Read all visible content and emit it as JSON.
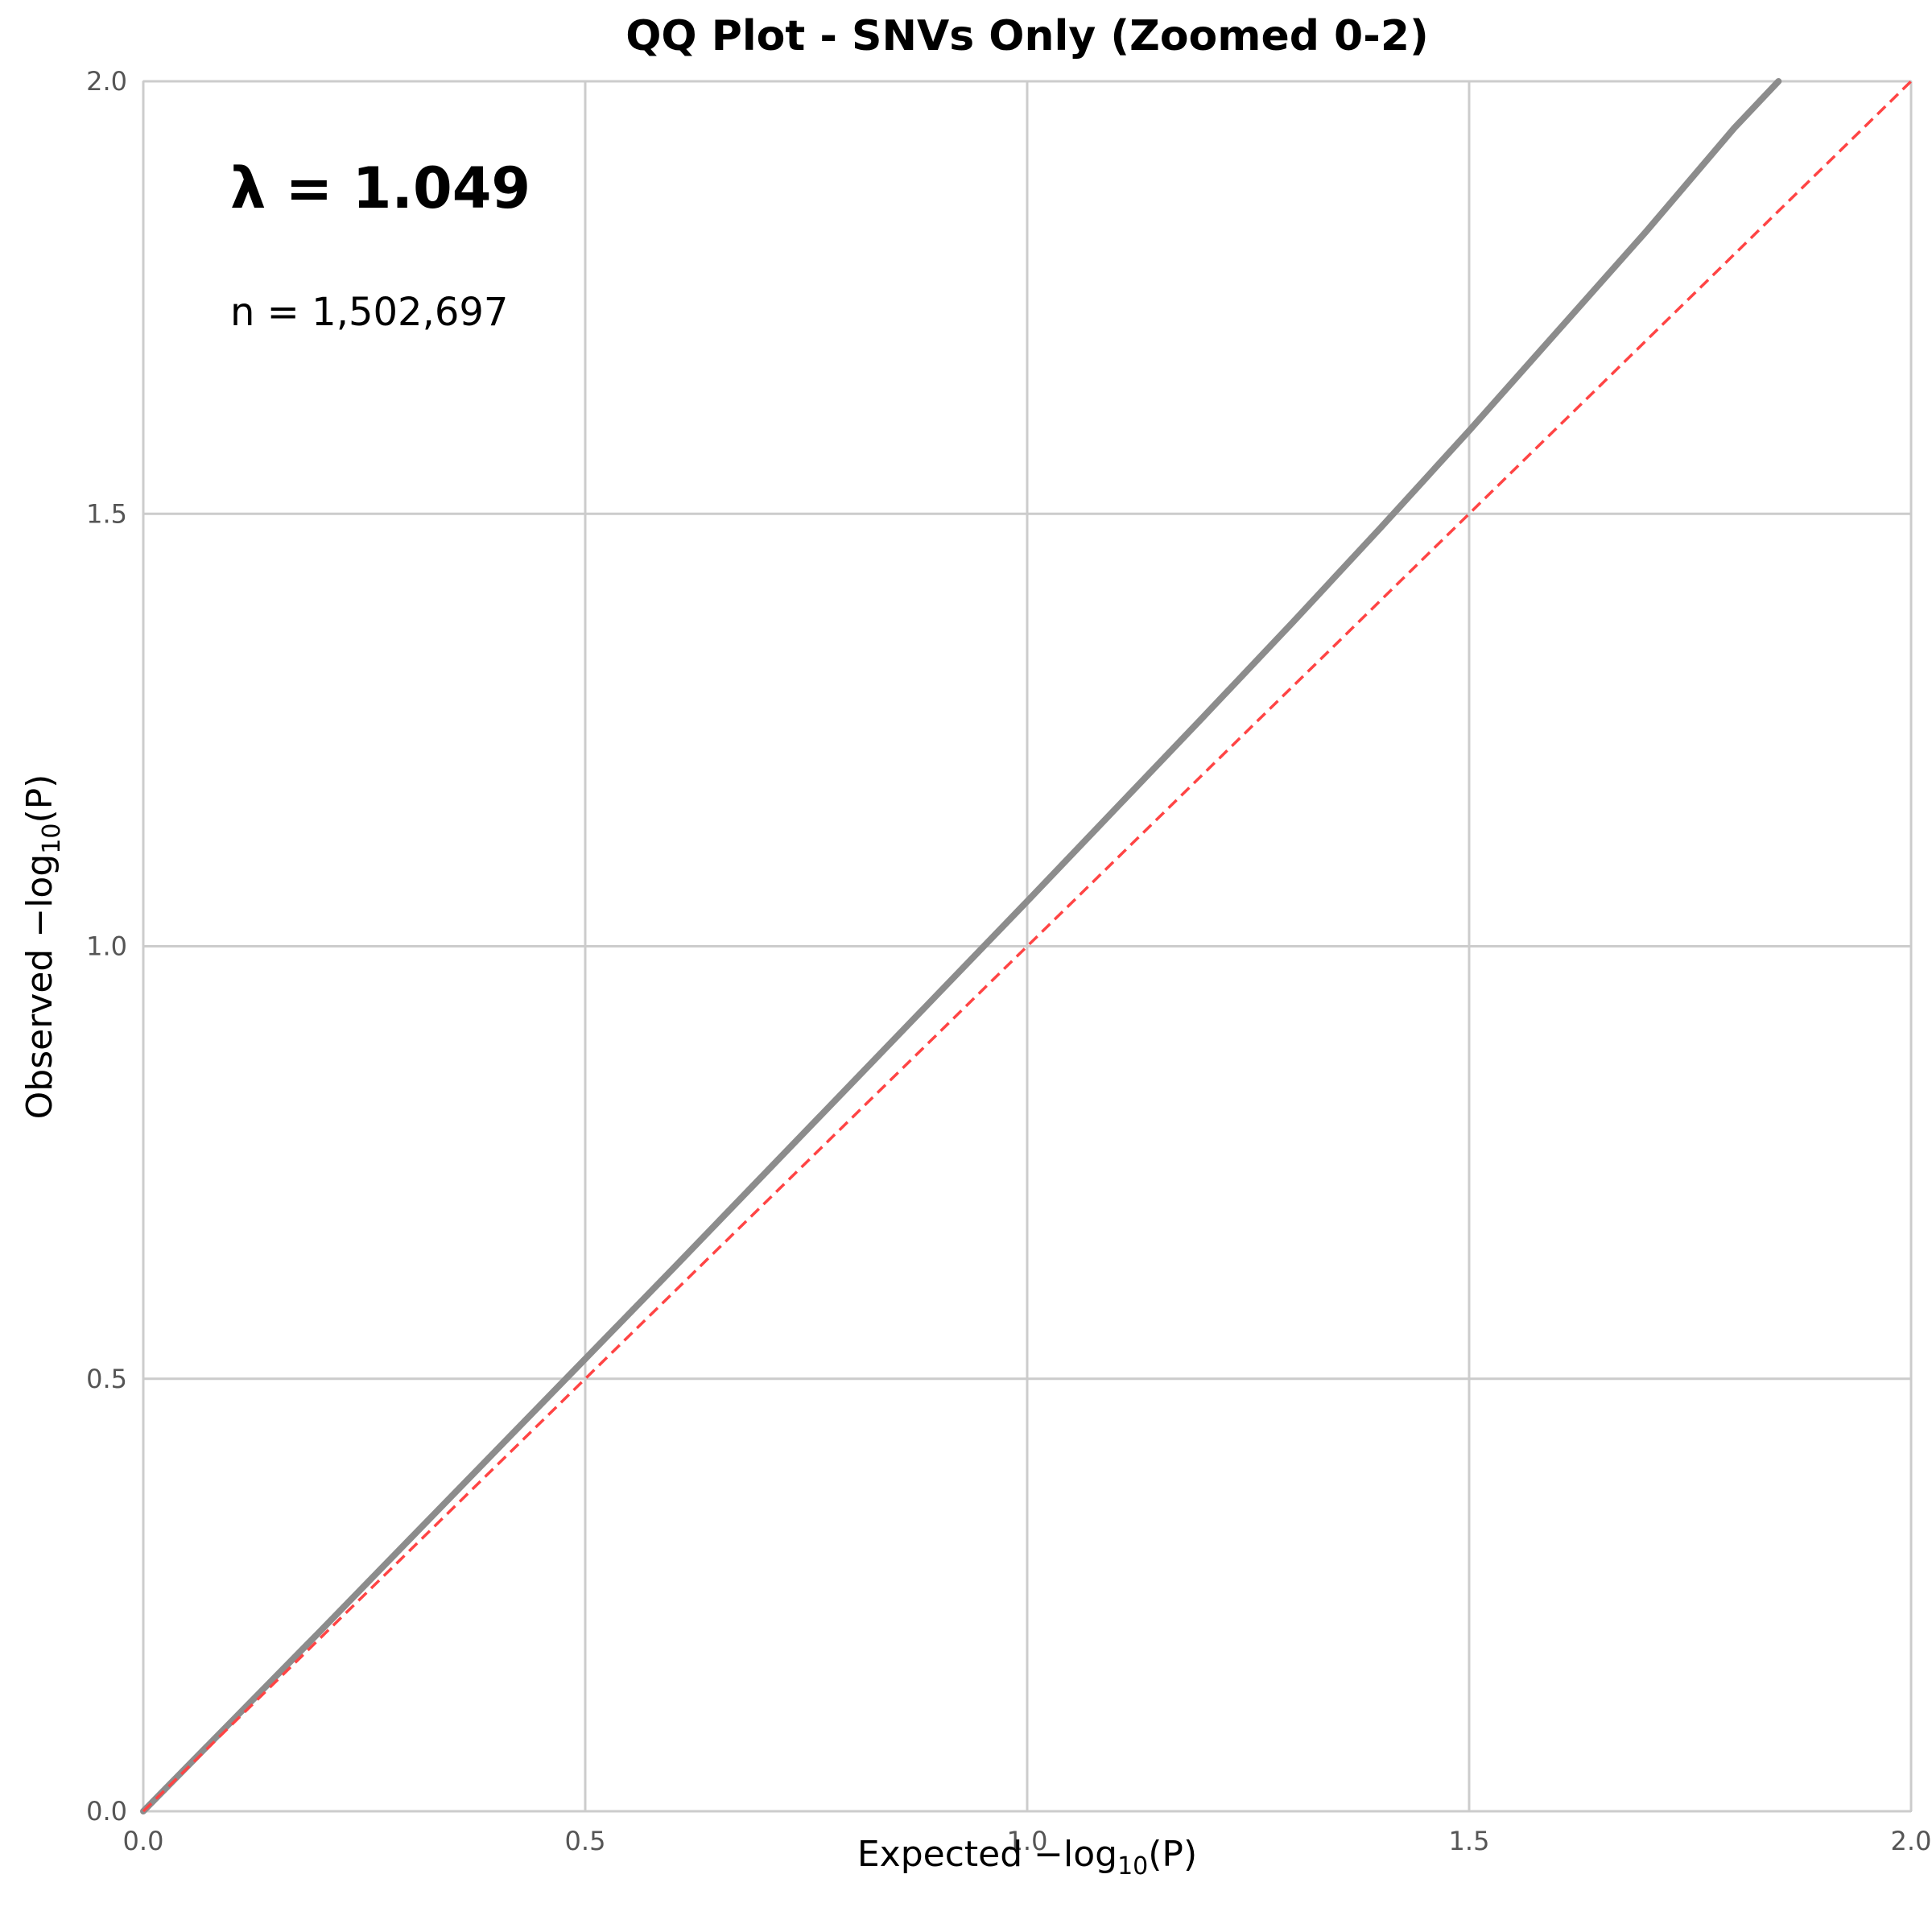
{
  "chart_data": {
    "type": "line",
    "title": "QQ Plot - SNVs Only (Zoomed 0-2)",
    "xlabel_main": "Expected −log",
    "xlabel_sub": "10",
    "xlabel_var": "(P)",
    "ylabel_main": "Observed −log",
    "ylabel_sub": "10",
    "ylabel_var": "(P)",
    "xlim": [
      0,
      2
    ],
    "ylim": [
      0,
      2
    ],
    "x_ticks": [
      0.0,
      0.5,
      1.0,
      1.5,
      2.0
    ],
    "y_ticks": [
      0.0,
      0.5,
      1.0,
      1.5,
      2.0
    ],
    "x_tick_labels": [
      "0.0",
      "0.5",
      "1.0",
      "1.5",
      "2.0"
    ],
    "y_tick_labels": [
      "0.0",
      "0.5",
      "1.0",
      "1.5",
      "2.0"
    ],
    "grid": true,
    "series": [
      {
        "role": "observed",
        "color": "#8c8c8c",
        "x": [
          0.0,
          0.1,
          0.2,
          0.3,
          0.4,
          0.5,
          0.6,
          0.7,
          0.8,
          0.9,
          1.0,
          1.1,
          1.2,
          1.3,
          1.4,
          1.5,
          1.6,
          1.7,
          1.8,
          1.85
        ],
        "y": [
          0.0,
          0.104,
          0.208,
          0.313,
          0.418,
          0.523,
          0.628,
          0.734,
          0.84,
          0.946,
          1.052,
          1.159,
          1.266,
          1.374,
          1.484,
          1.596,
          1.711,
          1.826,
          1.946,
          2.0
        ]
      },
      {
        "role": "null-expectation",
        "color": "#ff4444",
        "style": "dashed",
        "x": [
          0,
          2
        ],
        "y": [
          0,
          2
        ]
      }
    ],
    "annotations": {
      "lambda": "λ = 1.049",
      "n": "n = 1,502,697"
    }
  }
}
